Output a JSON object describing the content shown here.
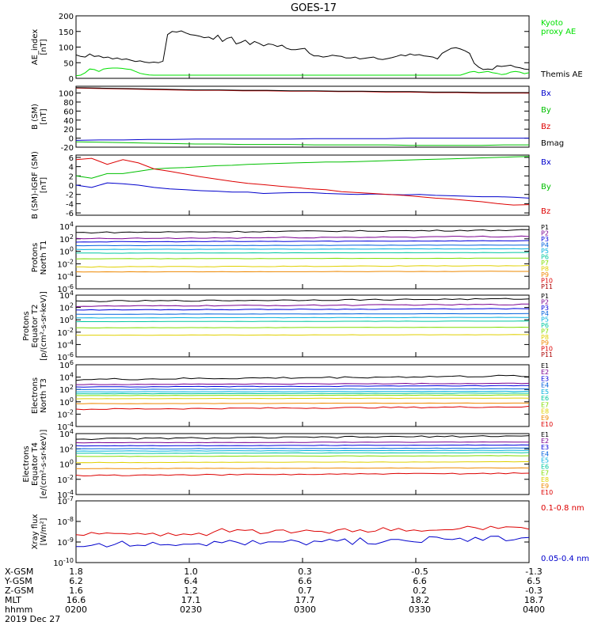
{
  "title": "GOES-17",
  "chart_data": [
    {
      "type": "line",
      "ylabel": "AE_index\n[nT]",
      "ylim": [
        0,
        200
      ],
      "yticks": [
        "0",
        "50",
        "100",
        "150",
        "200"
      ],
      "series": [
        {
          "name": "Kyoto\nproxy AE",
          "color": "#00e000",
          "values": [
            8,
            10,
            18,
            30,
            28,
            22,
            30,
            32,
            33,
            33,
            32,
            30,
            28,
            22,
            16,
            13,
            11,
            10,
            10,
            10,
            10,
            10,
            10,
            10,
            10,
            10,
            10,
            10,
            10,
            10,
            10,
            10,
            10,
            10,
            10,
            10,
            10,
            10,
            10,
            10,
            10,
            10,
            10,
            10,
            10,
            10,
            10,
            10,
            10,
            10,
            10,
            10,
            10,
            10,
            10,
            10,
            10,
            10,
            10,
            10,
            10,
            10,
            10,
            10,
            10,
            10,
            10,
            10,
            10,
            10,
            10,
            10,
            10,
            10,
            10,
            10,
            10,
            10,
            10,
            10,
            10,
            10,
            10,
            10,
            10,
            15,
            20,
            22,
            18,
            20,
            22,
            18,
            16,
            12,
            14,
            20,
            22,
            20,
            15,
            18
          ]
        },
        {
          "name": "Themis AE",
          "color": "#000000",
          "values": [
            75,
            70,
            68,
            78,
            70,
            72,
            66,
            68,
            62,
            65,
            60,
            62,
            58,
            54,
            56,
            52,
            50,
            52,
            50,
            55,
            140,
            150,
            148,
            152,
            145,
            140,
            138,
            135,
            130,
            132,
            125,
            138,
            118,
            128,
            132,
            110,
            115,
            122,
            108,
            118,
            112,
            104,
            110,
            108,
            102,
            106,
            96,
            92,
            92,
            94,
            96,
            80,
            72,
            72,
            68,
            70,
            74,
            72,
            70,
            65,
            65,
            68,
            62,
            64,
            66,
            68,
            62,
            60,
            63,
            66,
            70,
            75,
            72,
            78,
            74,
            76,
            72,
            70,
            68,
            62,
            80,
            88,
            96,
            98,
            94,
            88,
            80,
            48,
            36,
            28,
            30,
            28,
            40,
            38,
            40,
            42,
            36,
            34,
            30,
            28
          ]
        }
      ]
    },
    {
      "type": "line",
      "ylabel": "B (SM)\n[nT]",
      "ylim": [
        -20,
        115
      ],
      "yticks": [
        "-20",
        "0",
        "20",
        "40",
        "60",
        "80",
        "100"
      ],
      "series": [
        {
          "name": "Bx",
          "color": "#0000cc",
          "values": [
            -5,
            -4,
            -4,
            -3,
            -3,
            -2,
            -2,
            -2,
            -2,
            -2,
            -1,
            -1,
            -1,
            -1,
            0,
            0,
            0,
            0,
            0,
            0
          ]
        },
        {
          "name": "By",
          "color": "#00c000",
          "values": [
            -8,
            -9,
            -10,
            -11,
            -12,
            -13,
            -13,
            -14,
            -14,
            -14,
            -15,
            -15,
            -15,
            -15,
            -16,
            -16,
            -16,
            -16,
            -15,
            -15
          ]
        },
        {
          "name": "Bz",
          "color": "#dd0000",
          "values": [
            111,
            110,
            109,
            108,
            107,
            106,
            106,
            105,
            105,
            104,
            104,
            103,
            103,
            102,
            102,
            101,
            101,
            100,
            100,
            100
          ]
        },
        {
          "name": "Bmag",
          "color": "#000000",
          "values": [
            112,
            111,
            110,
            109,
            108,
            107,
            107,
            106,
            106,
            105,
            105,
            104,
            104,
            103,
            103,
            102,
            102,
            101,
            101,
            101
          ]
        }
      ]
    },
    {
      "type": "line",
      "ylabel": "B (SM)-IGRF (SM)\n[nT]",
      "ylim": [
        -6.5,
        6.5
      ],
      "yticks": [
        "-6",
        "-4",
        "-2",
        "0",
        "2",
        "4",
        "6"
      ],
      "series": [
        {
          "name": "Bx",
          "color": "#0000cc",
          "values": [
            0,
            -0.5,
            0.5,
            0.3,
            0,
            -0.5,
            -0.8,
            -1,
            -1.2,
            -1.3,
            -1.5,
            -1.5,
            -1.8,
            -1.7,
            -1.6,
            -1.6,
            -1.8,
            -1.9,
            -2,
            -1.9,
            -2,
            -2.1,
            -2,
            -2.2,
            -2.3,
            -2.4,
            -2.5,
            -2.5,
            -2.6,
            -2.8
          ]
        },
        {
          "name": "By",
          "color": "#00c000",
          "values": [
            2,
            1.5,
            2.5,
            2.5,
            3,
            3.5,
            3.7,
            3.8,
            4,
            4.2,
            4.3,
            4.5,
            4.6,
            4.7,
            4.8,
            4.9,
            5,
            5,
            5.1,
            5.2,
            5.3,
            5.4,
            5.5,
            5.6,
            5.7,
            5.8,
            5.9,
            6,
            6.1,
            6.2
          ]
        },
        {
          "name": "Bz",
          "color": "#dd0000",
          "values": [
            5.5,
            5.8,
            4.5,
            5.5,
            4.8,
            3.5,
            3,
            2.4,
            1.8,
            1.3,
            0.8,
            0.4,
            0.1,
            -0.2,
            -0.5,
            -0.8,
            -1,
            -1.4,
            -1.6,
            -1.8,
            -2,
            -2.2,
            -2.5,
            -2.8,
            -3,
            -3.3,
            -3.6,
            -4,
            -4.3,
            -4.2
          ]
        }
      ]
    },
    {
      "type": "line",
      "ylabel": "Protons\nNorth T1",
      "yscale": "log",
      "ylim": [
        -6,
        4
      ],
      "yticks": [
        "10-6",
        "10-4",
        "10-2",
        "100",
        "102",
        "104"
      ],
      "series": [
        {
          "name": "P1",
          "color": "#000000",
          "log_values": [
            3.0,
            3.4
          ]
        },
        {
          "name": "P2",
          "color": "#7a0090",
          "log_values": [
            2.0,
            2.4
          ]
        },
        {
          "name": "P3",
          "color": "#0000dd",
          "log_values": [
            1.5,
            1.7
          ]
        },
        {
          "name": "P4",
          "color": "#0060dd",
          "log_values": [
            0.9,
            1.0
          ]
        },
        {
          "name": "P5",
          "color": "#00b0dd",
          "log_values": [
            0.3,
            0.4
          ]
        },
        {
          "name": "P6",
          "color": "#00c8a0",
          "log_values": [
            -0.3,
            -0.2
          ]
        },
        {
          "name": "P7",
          "color": "#80dd00",
          "log_values": [
            -1.2,
            -1.1
          ]
        },
        {
          "name": "P8",
          "color": "#e0d000",
          "log_values": [
            -2.5,
            -2.3
          ]
        },
        {
          "name": "P9",
          "color": "#ee8800",
          "log_values": [
            -3.3,
            -3.2
          ]
        },
        {
          "name": "P10",
          "color": "#dd0000",
          "log_values": []
        },
        {
          "name": "P11",
          "color": "#aa0000",
          "log_values": []
        }
      ]
    },
    {
      "type": "line",
      "ylabel": "Protons\nEquator T2\n[p/(cm²-s-sr-keV)]",
      "yscale": "log",
      "ylim": [
        -6,
        4
      ],
      "yticks": [
        "10-6",
        "10-4",
        "10-2",
        "100",
        "102",
        "104"
      ],
      "series": [
        {
          "name": "P1",
          "color": "#000000",
          "log_values": [
            3.0,
            3.4
          ]
        },
        {
          "name": "P2",
          "color": "#7a0090",
          "log_values": [
            2.2,
            2.5
          ]
        },
        {
          "name": "P3",
          "color": "#0000dd",
          "log_values": [
            1.6,
            1.8
          ]
        },
        {
          "name": "P4",
          "color": "#0060dd",
          "log_values": [
            0.9,
            1.0
          ]
        },
        {
          "name": "P5",
          "color": "#00b0dd",
          "log_values": [
            0.3,
            0.4
          ]
        },
        {
          "name": "P6",
          "color": "#00c8a0",
          "log_values": [
            -0.3,
            -0.2
          ]
        },
        {
          "name": "P7",
          "color": "#80dd00",
          "log_values": [
            -1.3,
            -1.2
          ]
        },
        {
          "name": "P8",
          "color": "#e0d000",
          "log_values": [
            -2.5,
            -2.4
          ]
        },
        {
          "name": "P9",
          "color": "#ee8800",
          "log_values": []
        },
        {
          "name": "P10",
          "color": "#dd0000",
          "log_values": []
        },
        {
          "name": "P11",
          "color": "#aa0000",
          "log_values": []
        }
      ]
    },
    {
      "type": "line",
      "ylabel": "Electrons\nNorth T3",
      "yscale": "log",
      "ylim": [
        -4,
        6
      ],
      "yticks": [
        "10-4",
        "10-2",
        "100",
        "102",
        "104",
        "106"
      ],
      "series": [
        {
          "name": "E1",
          "color": "#000000",
          "log_values": [
            3.6,
            4.2
          ]
        },
        {
          "name": "E2",
          "color": "#7a0090",
          "log_values": [
            2.8,
            3.0
          ]
        },
        {
          "name": "E3",
          "color": "#0000dd",
          "log_values": [
            2.4,
            2.6
          ]
        },
        {
          "name": "E4",
          "color": "#0060dd",
          "log_values": [
            2.0,
            2.1
          ]
        },
        {
          "name": "E5",
          "color": "#00b0dd",
          "log_values": [
            1.6,
            1.7
          ]
        },
        {
          "name": "E6",
          "color": "#00c8a0",
          "log_values": [
            1.3,
            1.4
          ]
        },
        {
          "name": "E7",
          "color": "#80dd00",
          "log_values": [
            1.0,
            1.1
          ]
        },
        {
          "name": "E8",
          "color": "#e0d000",
          "log_values": [
            0.5,
            0.6
          ]
        },
        {
          "name": "E9",
          "color": "#ee8800",
          "log_values": [
            -0.3,
            -0.2
          ]
        },
        {
          "name": "E10",
          "color": "#dd0000",
          "log_values": [
            -1.2,
            -0.8
          ]
        }
      ]
    },
    {
      "type": "line",
      "ylabel": "Electrons\nEquator T4\n[e/(cm²-s-sr-keV)]",
      "yscale": "log",
      "ylim": [
        -4,
        4
      ],
      "yticks": [
        "10-4",
        "10-2",
        "100",
        "102",
        "104"
      ],
      "series": [
        {
          "name": "E1",
          "color": "#000000",
          "log_values": [
            3.3,
            3.7
          ]
        },
        {
          "name": "E2",
          "color": "#7a0090",
          "log_values": [
            2.8,
            2.9
          ]
        },
        {
          "name": "E3",
          "color": "#0000dd",
          "log_values": [
            2.4,
            2.5
          ]
        },
        {
          "name": "E4",
          "color": "#0060dd",
          "log_values": [
            2.0,
            2.1
          ]
        },
        {
          "name": "E5",
          "color": "#00b0dd",
          "log_values": [
            1.7,
            1.8
          ]
        },
        {
          "name": "E6",
          "color": "#00c8a0",
          "log_values": [
            1.4,
            1.5
          ]
        },
        {
          "name": "E7",
          "color": "#80dd00",
          "log_values": [
            1.0,
            1.1
          ]
        },
        {
          "name": "E8",
          "color": "#e0d000",
          "log_values": [
            0.2,
            0.3
          ]
        },
        {
          "name": "E9",
          "color": "#ee8800",
          "log_values": [
            -0.6,
            -0.5
          ]
        },
        {
          "name": "E10",
          "color": "#dd0000",
          "log_values": [
            -1.5,
            -1.2
          ]
        }
      ]
    },
    {
      "type": "line",
      "ylabel": "Xray flux\n[W/m²]",
      "yscale": "log",
      "ylim": [
        -10,
        -7
      ],
      "yticks": [
        "10-10",
        "10-9",
        "10-8",
        "10-7"
      ],
      "series": [
        {
          "name": "0.1-0.8 nm",
          "color": "#dd0000",
          "log_values": [
            -8.6,
            -8.3
          ]
        },
        {
          "name": "0.05-0.4 nm",
          "color": "#0000cc",
          "log_values": [
            -9.2,
            -8.8
          ]
        }
      ]
    }
  ],
  "footer": {
    "rows": [
      {
        "label": "X-GSM",
        "values": [
          "1.8",
          "1.0",
          "0.3",
          "-0.5",
          "-1.3"
        ]
      },
      {
        "label": "Y-GSM",
        "values": [
          "6.2",
          "6.4",
          "6.6",
          "6.6",
          "6.5"
        ]
      },
      {
        "label": "Z-GSM",
        "values": [
          "1.6",
          "1.2",
          "0.7",
          "0.2",
          "-0.3"
        ]
      },
      {
        "label": "MLT",
        "values": [
          "16.6",
          "17.1",
          "17.7",
          "18.2",
          "18.7"
        ]
      },
      {
        "label": "hhmm",
        "values": [
          "0200",
          "0230",
          "0300",
          "0330",
          "0400"
        ]
      }
    ],
    "date": "2019 Dec 27"
  }
}
